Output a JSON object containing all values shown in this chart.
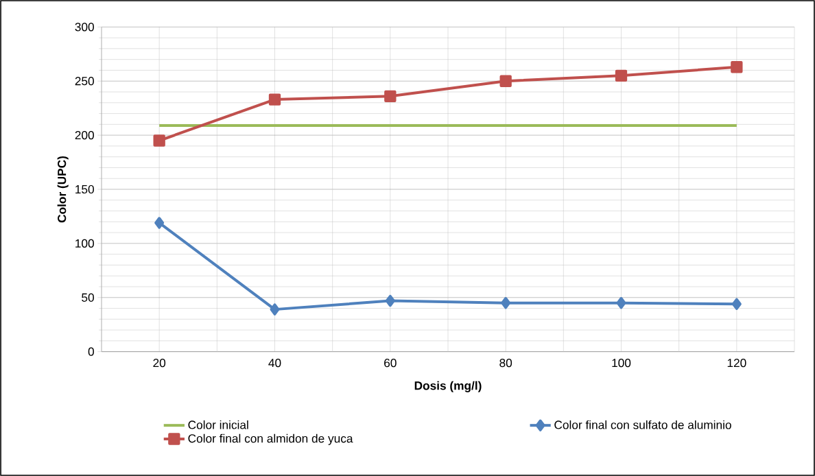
{
  "chart_data": {
    "type": "line",
    "xlabel": "Dosis (mg/l)",
    "ylabel": "Color (UPC)",
    "categories": [
      "20",
      "40",
      "60",
      "80",
      "100",
      "120"
    ],
    "series": [
      {
        "name": "Color inicial",
        "color": "#9bbb59",
        "marker": "none",
        "values": [
          209,
          209,
          209,
          209,
          209,
          209
        ]
      },
      {
        "name": "Color final con sulfato de aluminio",
        "color": "#4f81bd",
        "marker": "diamond",
        "values": [
          119,
          39,
          47,
          45,
          45,
          44
        ]
      },
      {
        "name": "Color final con almidon de yuca",
        "color": "#c0504d",
        "marker": "square",
        "values": [
          195,
          233,
          236,
          250,
          255,
          263
        ]
      }
    ],
    "ylim": [
      0,
      300
    ],
    "yticks": [
      0,
      50,
      100,
      150,
      200,
      250,
      300
    ],
    "grid": true,
    "legend": "bottom",
    "line_style": "solid"
  }
}
